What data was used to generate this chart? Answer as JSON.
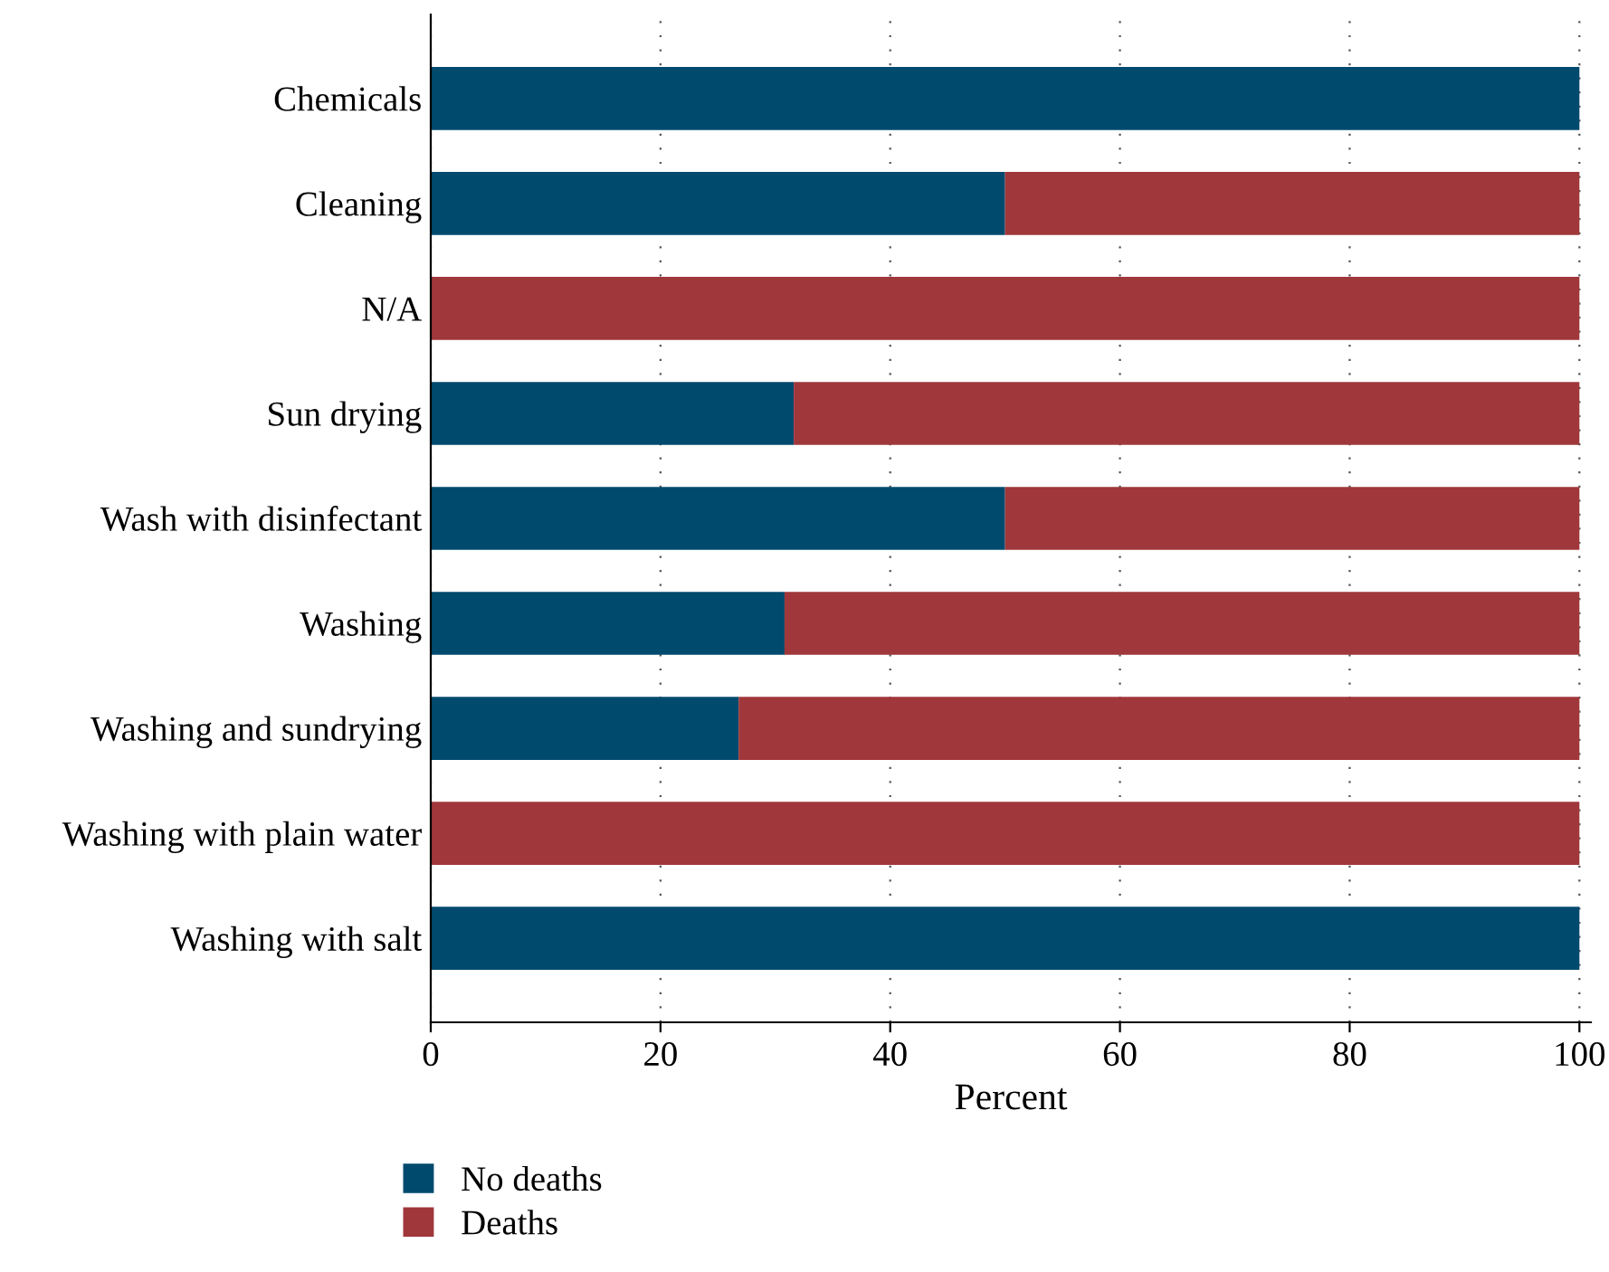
{
  "chart_data": {
    "type": "bar",
    "orientation": "horizontal",
    "stacked": true,
    "xlabel": "Percent",
    "categories": [
      "Chemicals",
      "Cleaning",
      "N/A",
      "Sun drying",
      "Wash with disinfectant",
      "Washing",
      "Washing and sundrying",
      "Washing with plain water",
      "Washing with salt"
    ],
    "series": [
      {
        "name": "No deaths",
        "color": "#004a6e",
        "values": [
          100,
          50,
          0,
          31.6,
          50,
          30.8,
          26.8,
          0,
          100
        ]
      },
      {
        "name": "Deaths",
        "color": "#a0373b",
        "values": [
          0,
          50,
          100,
          68.4,
          50,
          69.2,
          73.2,
          100,
          0
        ]
      }
    ],
    "xlim": [
      0,
      101
    ],
    "xticks": [
      0,
      20,
      40,
      60,
      80,
      100
    ],
    "grid": "x",
    "legend": "bottom left"
  }
}
